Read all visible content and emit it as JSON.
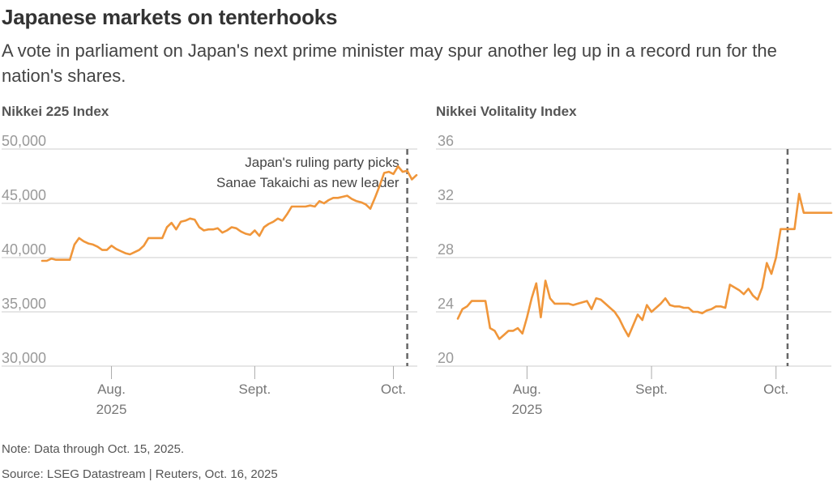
{
  "header": {
    "title": "Japanese markets on tenterhooks",
    "subtitle": "A vote in parliament on Japan's next prime minister may spur another leg up in a record run for the nation's shares."
  },
  "footer": {
    "note": "Note: Data through Oct. 15, 2025.",
    "source": "Source: LSEG Datastream | Reuters, Oct. 16, 2025"
  },
  "colors": {
    "line": "#F0963A",
    "grid": "#cccccc",
    "event": "#666666"
  },
  "chart_data": [
    {
      "type": "line",
      "title": "Nikkei 225 Index",
      "ylim": [
        30000,
        50000
      ],
      "yticks": [
        30000,
        35000,
        40000,
        45000,
        50000
      ],
      "ytick_labels": [
        "30,000",
        "35,000",
        "40,000",
        "45,000",
        "50,000"
      ],
      "xlim": [
        0,
        81
      ],
      "xticks": [
        {
          "pos": 15,
          "label": "Aug.",
          "sub": "2025"
        },
        {
          "pos": 46,
          "label": "Sept.",
          "sub": ""
        },
        {
          "pos": 76,
          "label": "Oct.",
          "sub": ""
        }
      ],
      "event_x": 79,
      "annotation": [
        "Japan's ruling party picks",
        "Sanae Takaichi as new leader"
      ],
      "series": [
        {
          "name": "Nikkei 225 Index",
          "x": [
            0,
            1,
            2,
            3,
            4,
            5,
            6,
            7,
            8,
            9,
            10,
            11,
            12,
            13,
            14,
            15,
            16,
            17,
            18,
            19,
            20,
            21,
            22,
            23,
            24,
            25,
            26,
            27,
            28,
            29,
            30,
            31,
            32,
            33,
            34,
            35,
            36,
            37,
            38,
            39,
            40,
            41,
            42,
            43,
            44,
            45,
            46,
            47,
            48,
            49,
            50,
            51,
            52,
            53,
            54,
            55,
            56,
            57,
            58,
            59,
            60,
            61,
            62,
            63,
            64,
            65,
            66,
            67,
            68,
            69,
            70,
            71,
            72,
            73,
            74,
            75,
            76,
            77,
            78,
            79,
            80,
            81
          ],
          "values": [
            39700,
            39700,
            39900,
            39800,
            39800,
            39800,
            39800,
            41200,
            41800,
            41500,
            41300,
            41200,
            41000,
            40700,
            40700,
            41100,
            40800,
            40600,
            40400,
            40300,
            40500,
            40700,
            41100,
            41800,
            41800,
            41800,
            41800,
            42800,
            43200,
            42600,
            43300,
            43400,
            43600,
            43500,
            42800,
            42500,
            42600,
            42600,
            42700,
            42300,
            42500,
            42800,
            42700,
            42400,
            42200,
            42100,
            42500,
            42000,
            42800,
            43100,
            43300,
            43600,
            43400,
            44000,
            44700,
            44700,
            44700,
            44700,
            44800,
            44700,
            45200,
            45000,
            45300,
            45500,
            45500,
            45600,
            45700,
            45400,
            45200,
            45100,
            44900,
            44500,
            45500,
            46600,
            47800,
            47900,
            47700,
            48400,
            47900,
            48000,
            47200,
            47600
          ]
        }
      ]
    },
    {
      "type": "line",
      "title": "Nikkei Volitality Index",
      "ylim": [
        20,
        36
      ],
      "yticks": [
        20,
        24,
        28,
        32,
        36
      ],
      "ytick_labels": [
        "20",
        "24",
        "28",
        "32",
        "36"
      ],
      "xlim": [
        0,
        81
      ],
      "xticks": [
        {
          "pos": 15,
          "label": "Aug.",
          "sub": "2025"
        },
        {
          "pos": 42,
          "label": "Sept.",
          "sub": ""
        },
        {
          "pos": 69,
          "label": "Oct.",
          "sub": ""
        }
      ],
      "event_x": 71.5,
      "series": [
        {
          "name": "Nikkei Volitality Index",
          "x": [
            0,
            1,
            2,
            3,
            4,
            5,
            6,
            7,
            8,
            9,
            10,
            11,
            12,
            13,
            14,
            15,
            16,
            17,
            18,
            19,
            20,
            21,
            22,
            23,
            24,
            25,
            26,
            27,
            28,
            29,
            30,
            31,
            32,
            33,
            34,
            35,
            36,
            37,
            38,
            39,
            40,
            41,
            42,
            43,
            44,
            45,
            46,
            47,
            48,
            49,
            50,
            51,
            52,
            53,
            54,
            55,
            56,
            57,
            58,
            59,
            60,
            61,
            62,
            63,
            64,
            65,
            66,
            67,
            68,
            69,
            70,
            71,
            72,
            73,
            74,
            75,
            76,
            77,
            78,
            79,
            80,
            81
          ],
          "values": [
            23.5,
            24.2,
            24.4,
            24.8,
            24.8,
            24.8,
            24.8,
            22.8,
            22.6,
            22.0,
            22.3,
            22.6,
            22.6,
            22.8,
            22.4,
            23.6,
            25.0,
            26.1,
            23.6,
            26.3,
            25.0,
            24.6,
            24.6,
            24.6,
            24.6,
            24.5,
            24.6,
            24.7,
            24.8,
            24.2,
            25.0,
            24.9,
            24.6,
            24.3,
            24.0,
            23.5,
            22.8,
            22.2,
            23.0,
            23.8,
            23.4,
            24.5,
            24.0,
            24.3,
            24.6,
            25.0,
            24.5,
            24.4,
            24.4,
            24.3,
            24.3,
            24.0,
            24.0,
            23.9,
            24.1,
            24.2,
            24.4,
            24.4,
            24.3,
            26.0,
            25.8,
            25.6,
            25.3,
            25.7,
            25.2,
            24.9,
            25.8,
            27.6,
            26.8,
            28.0,
            30.1,
            30.1,
            30.1,
            30.1,
            32.7,
            31.3,
            31.3,
            31.3,
            31.3,
            31.3,
            31.3,
            31.3
          ]
        }
      ]
    }
  ]
}
